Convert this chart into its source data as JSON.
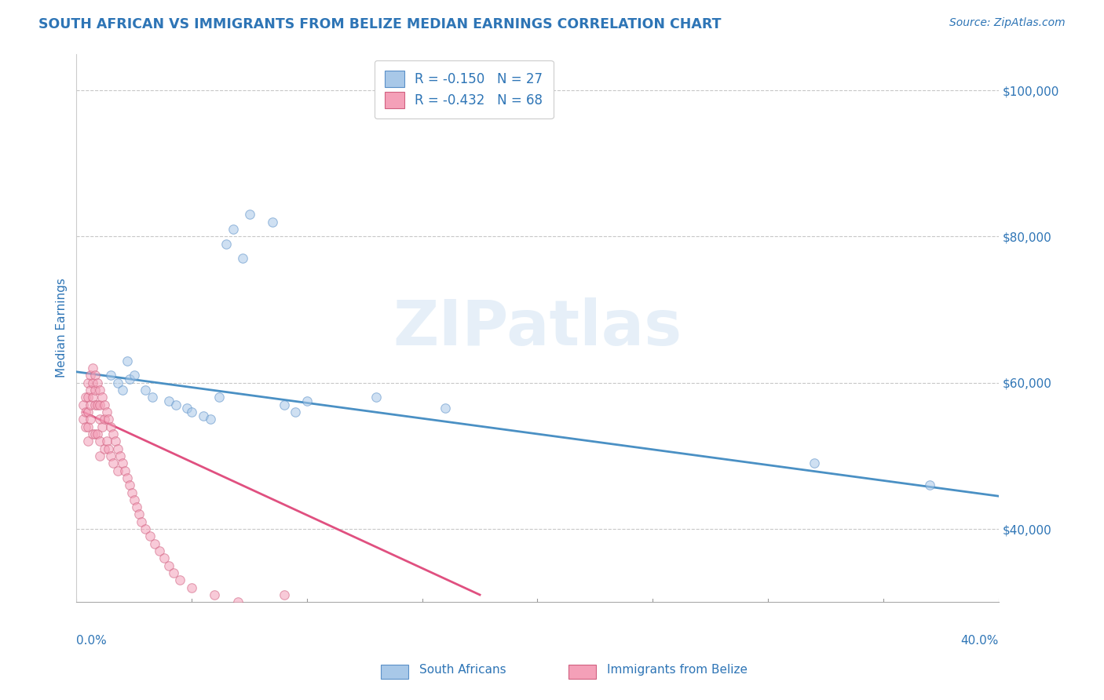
{
  "title": "SOUTH AFRICAN VS IMMIGRANTS FROM BELIZE MEDIAN EARNINGS CORRELATION CHART",
  "source": "Source: ZipAtlas.com",
  "ylabel": "Median Earnings",
  "watermark": "ZIPatlas",
  "xlim": [
    0.0,
    0.4
  ],
  "ylim": [
    30000,
    105000
  ],
  "yticks": [
    40000,
    60000,
    80000,
    100000
  ],
  "ytick_labels": [
    "$40,000",
    "$60,000",
    "$80,000",
    "$100,000"
  ],
  "legend_r1": "R = -0.150",
  "legend_n1": "N = 27",
  "legend_r2": "R = -0.432",
  "legend_n2": "N = 68",
  "color_blue": "#a8c8e8",
  "color_pink": "#f4a0b8",
  "color_blue_line": "#4a90c4",
  "color_pink_line": "#e05080",
  "title_color": "#2e75b6",
  "axis_label_color": "#2e75b6",
  "source_color": "#2e75b6",
  "background_color": "#ffffff",
  "south_africans_x": [
    0.015,
    0.018,
    0.02,
    0.022,
    0.023,
    0.025,
    0.03,
    0.033,
    0.04,
    0.043,
    0.048,
    0.05,
    0.055,
    0.058,
    0.062,
    0.065,
    0.068,
    0.072,
    0.075,
    0.085,
    0.09,
    0.095,
    0.1,
    0.13,
    0.16,
    0.32,
    0.37
  ],
  "south_africans_y": [
    61000,
    60000,
    59000,
    63000,
    60500,
    61000,
    59000,
    58000,
    57500,
    57000,
    56500,
    56000,
    55500,
    55000,
    58000,
    79000,
    81000,
    77000,
    83000,
    82000,
    57000,
    56000,
    57500,
    58000,
    56500,
    49000,
    46000
  ],
  "belize_x": [
    0.003,
    0.003,
    0.004,
    0.004,
    0.004,
    0.005,
    0.005,
    0.005,
    0.005,
    0.005,
    0.006,
    0.006,
    0.006,
    0.006,
    0.007,
    0.007,
    0.007,
    0.007,
    0.008,
    0.008,
    0.008,
    0.008,
    0.009,
    0.009,
    0.009,
    0.01,
    0.01,
    0.01,
    0.01,
    0.01,
    0.011,
    0.011,
    0.012,
    0.012,
    0.012,
    0.013,
    0.013,
    0.014,
    0.014,
    0.015,
    0.015,
    0.016,
    0.016,
    0.017,
    0.018,
    0.018,
    0.019,
    0.02,
    0.021,
    0.022,
    0.023,
    0.024,
    0.025,
    0.026,
    0.027,
    0.028,
    0.03,
    0.032,
    0.034,
    0.036,
    0.038,
    0.04,
    0.042,
    0.045,
    0.05,
    0.06,
    0.07,
    0.09
  ],
  "belize_y": [
    57000,
    55000,
    58000,
    56000,
    54000,
    60000,
    58000,
    56000,
    54000,
    52000,
    61000,
    59000,
    57000,
    55000,
    62000,
    60000,
    58000,
    53000,
    61000,
    59000,
    57000,
    53000,
    60000,
    57000,
    53000,
    59000,
    57000,
    55000,
    52000,
    50000,
    58000,
    54000,
    57000,
    55000,
    51000,
    56000,
    52000,
    55000,
    51000,
    54000,
    50000,
    53000,
    49000,
    52000,
    51000,
    48000,
    50000,
    49000,
    48000,
    47000,
    46000,
    45000,
    44000,
    43000,
    42000,
    41000,
    40000,
    39000,
    38000,
    37000,
    36000,
    35000,
    34000,
    33000,
    32000,
    31000,
    30000,
    31000
  ],
  "grid_color": "#c8c8c8",
  "dot_size": 70,
  "dot_alpha": 0.55,
  "dot_edge_color_blue": "#5a90c8",
  "dot_edge_color_pink": "#d06080",
  "blue_line_x0": 0.0,
  "blue_line_x1": 0.4,
  "blue_line_y0": 61500,
  "blue_line_y1": 44500,
  "pink_line_x0": 0.003,
  "pink_line_x1": 0.175,
  "pink_line_y0": 56000,
  "pink_line_y1": 31000
}
